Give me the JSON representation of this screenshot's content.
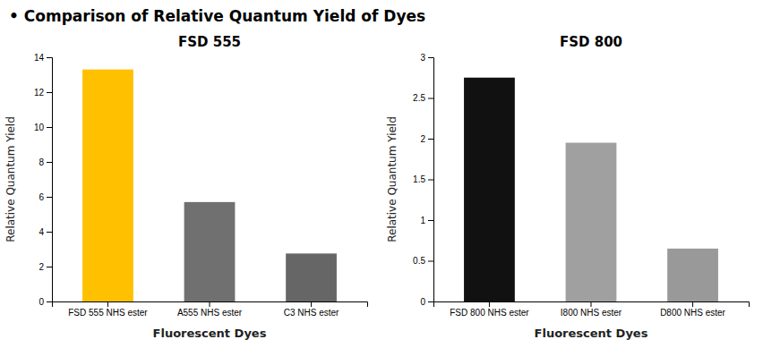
{
  "title": "• Comparison of Relative Quantum Yield of Dyes",
  "chart_data": [
    {
      "type": "bar",
      "title": "FSD 555",
      "categories": [
        "FSD 555 NHS ester",
        "A555 NHS ester",
        "C3 NHS ester"
      ],
      "values": [
        13.3,
        5.7,
        2.75
      ],
      "colors": [
        "#FFC000",
        "#707070",
        "#666666"
      ],
      "ylabel": "Relative Quantum Yield",
      "xlabel": "Fluorescent Dyes",
      "ylim": [
        0,
        14
      ],
      "yticks": [
        0,
        2,
        4,
        6,
        8,
        10,
        12,
        14
      ],
      "grid": false
    },
    {
      "type": "bar",
      "title": "FSD 800",
      "categories": [
        "FSD 800 NHS ester",
        "I800 NHS ester",
        "D800 NHS ester"
      ],
      "values": [
        2.75,
        1.95,
        0.65
      ],
      "colors": [
        "#111111",
        "#a0a0a0",
        "#999999"
      ],
      "ylabel": "Relative Quantum Yield",
      "xlabel": "Fluorescent Dyes",
      "ylim": [
        0,
        3
      ],
      "yticks": [
        0,
        0.5,
        1,
        1.5,
        2,
        2.5,
        3
      ],
      "grid": false
    }
  ]
}
